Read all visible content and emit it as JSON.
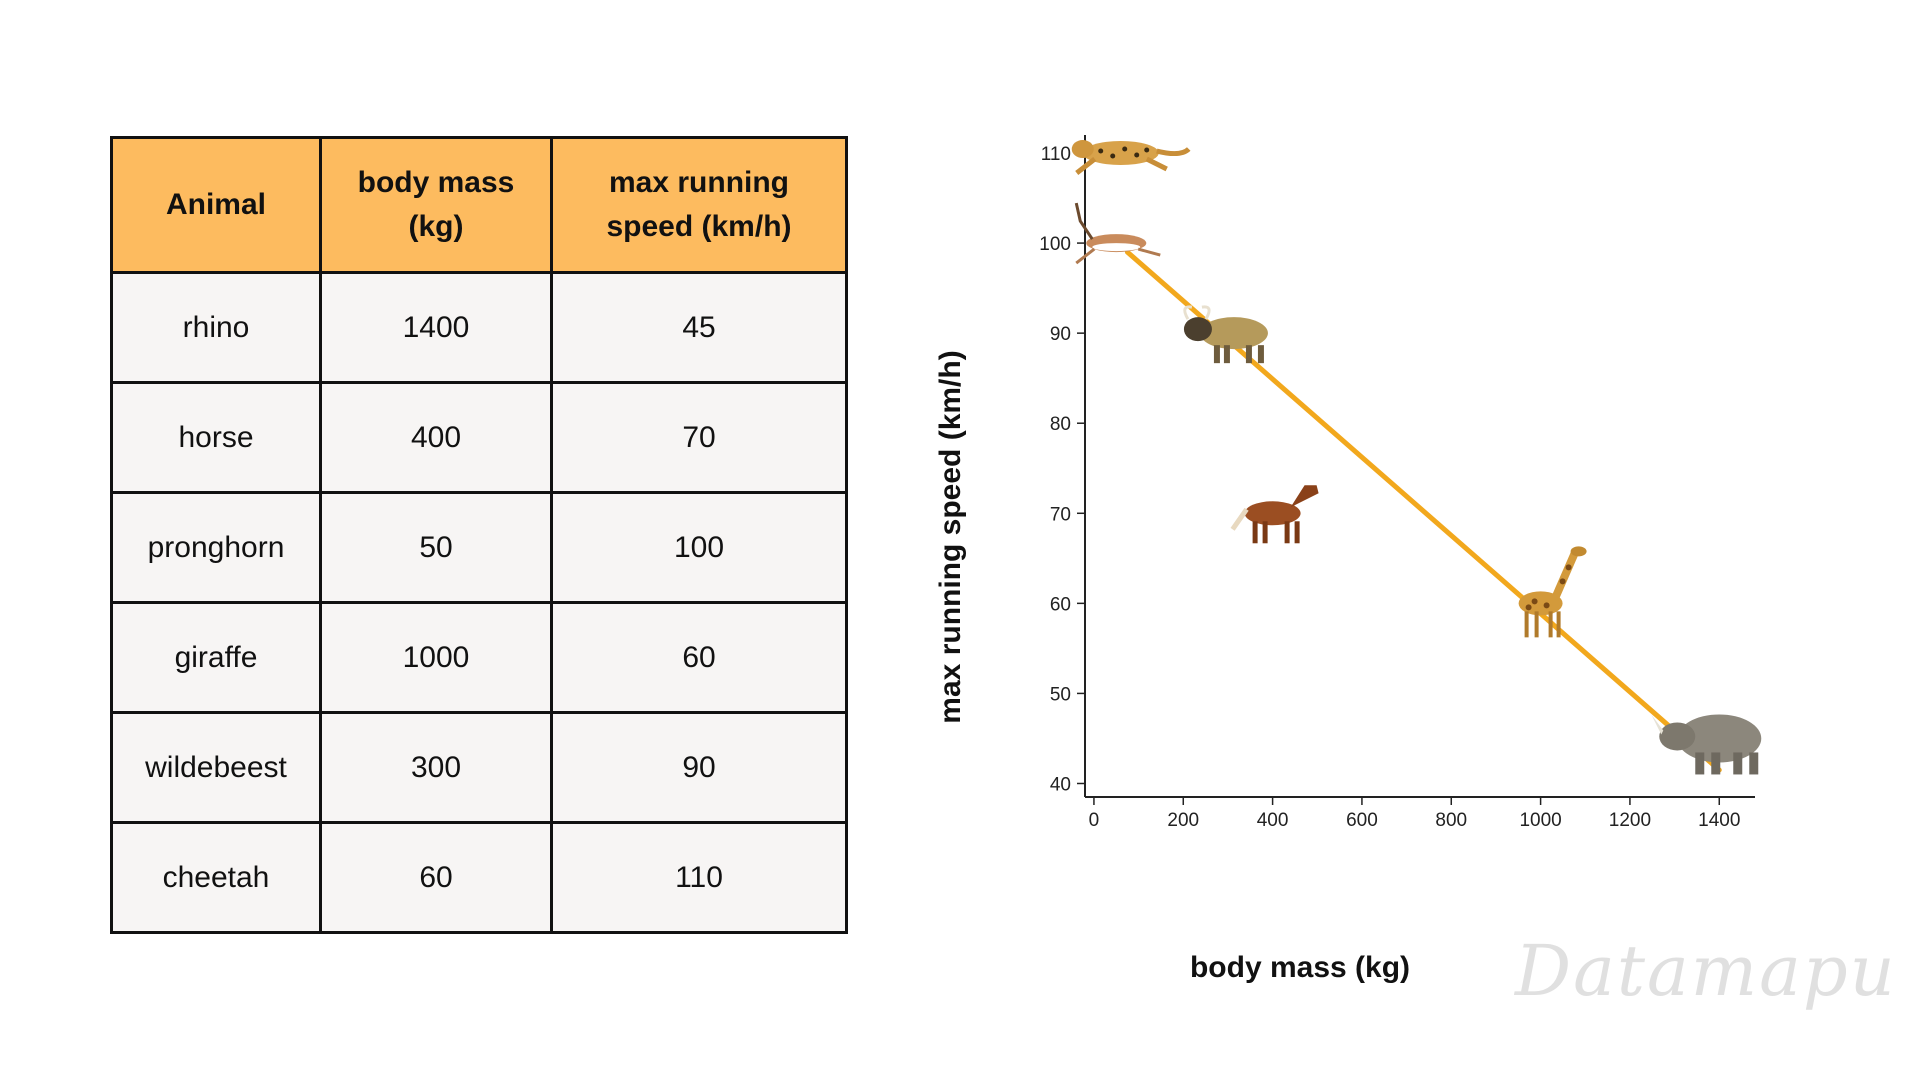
{
  "table": {
    "headers": [
      {
        "lines": [
          "Animal"
        ]
      },
      {
        "lines": [
          "body mass",
          "(kg)"
        ]
      },
      {
        "lines": [
          "max running",
          "speed  (km/h)"
        ]
      }
    ],
    "rows": [
      [
        "rhino",
        "1400",
        "45"
      ],
      [
        "horse",
        "400",
        "70"
      ],
      [
        "pronghorn",
        "50",
        "100"
      ],
      [
        "giraffe",
        "1000",
        "60"
      ],
      [
        "wildebeest",
        "300",
        "90"
      ],
      [
        "cheetah",
        "60",
        "110"
      ]
    ],
    "header_color": "#fdbb5f",
    "body_color": "#f7f5f4"
  },
  "watermark": "Datamapu",
  "chart_data": {
    "type": "scatter",
    "xlabel": "body mass (kg)",
    "ylabel": "max running speed (km/h)",
    "xlim": [
      -20,
      1480
    ],
    "ylim": [
      38.5,
      112
    ],
    "xticks": [
      0,
      200,
      400,
      600,
      800,
      1000,
      1200,
      1400
    ],
    "yticks": [
      40,
      50,
      60,
      70,
      80,
      90,
      100,
      110
    ],
    "points": [
      {
        "name": "rhino",
        "x": 1400,
        "y": 45,
        "icon": "rhino-icon"
      },
      {
        "name": "horse",
        "x": 400,
        "y": 70,
        "icon": "horse-icon"
      },
      {
        "name": "pronghorn",
        "x": 50,
        "y": 100,
        "icon": "pronghorn-icon"
      },
      {
        "name": "giraffe",
        "x": 1000,
        "y": 60,
        "icon": "giraffe-icon"
      },
      {
        "name": "wildebeest",
        "x": 300,
        "y": 90,
        "icon": "wildebeest-icon"
      },
      {
        "name": "cheetah",
        "x": 60,
        "y": 110,
        "icon": "cheetah-icon"
      }
    ],
    "trend_line": {
      "x": [
        75,
        1400
      ],
      "y": [
        99,
        41.5
      ],
      "color": "#f2a81d"
    },
    "grid": false,
    "axis_color": "#222222"
  }
}
